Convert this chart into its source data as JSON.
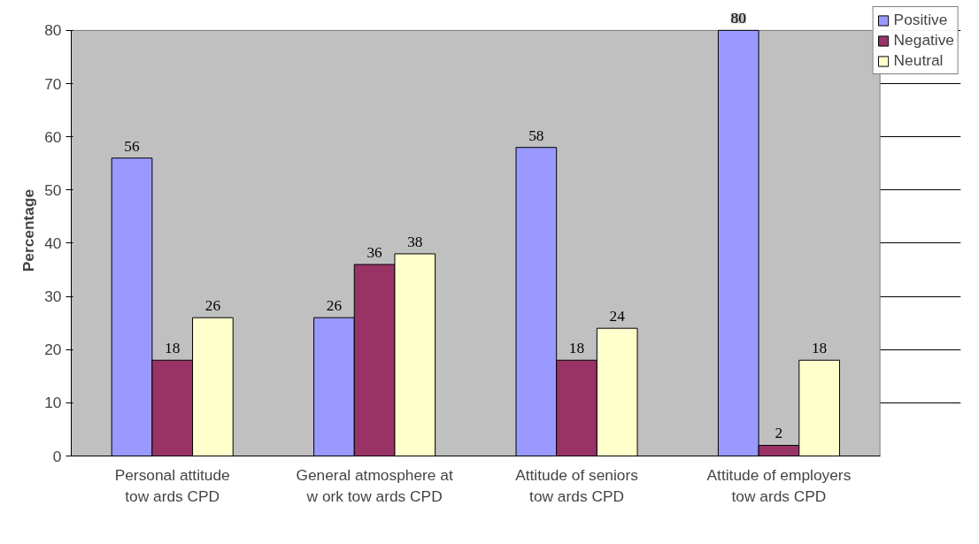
{
  "chart_data": {
    "type": "bar",
    "ylabel": "Percentage",
    "categories": [
      "Personal attitude\ntow ards CPD",
      "General atmosphere at\nw ork tow ards CPD",
      "Attitude of seniors\ntow ards CPD",
      "Attitude of employers\ntow ards CPD"
    ],
    "series": [
      {
        "name": "Positive",
        "color": "#9999ff",
        "values": [
          56,
          26,
          58,
          80
        ]
      },
      {
        "name": "Negative",
        "color": "#993366",
        "values": [
          18,
          36,
          18,
          2
        ]
      },
      {
        "name": "Neutral",
        "color": "#ffffcc",
        "values": [
          26,
          38,
          24,
          18
        ]
      }
    ],
    "ylim": [
      0,
      80
    ],
    "yticks": [
      0,
      10,
      20,
      30,
      40,
      50,
      60,
      70,
      80
    ],
    "grid": "y",
    "legend": "top right",
    "data_labels": true
  }
}
